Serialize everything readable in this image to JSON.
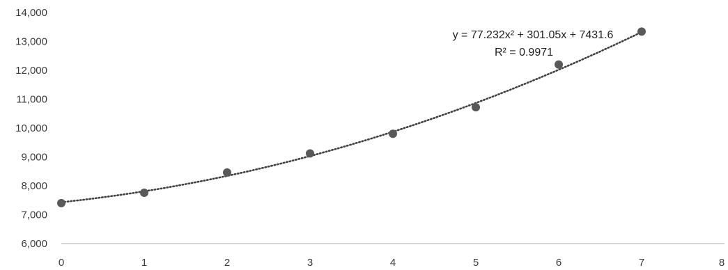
{
  "chart_data": {
    "type": "scatter",
    "x": [
      0,
      1,
      2,
      3,
      4,
      5,
      6,
      7
    ],
    "y": [
      7400,
      7760,
      8460,
      9120,
      9800,
      10720,
      12200,
      13340
    ],
    "xlim": [
      0,
      8
    ],
    "ylim": [
      6000,
      14000
    ],
    "x_ticks": [
      0,
      1,
      2,
      3,
      4,
      5,
      6,
      7,
      8
    ],
    "y_ticks": [
      6000,
      7000,
      8000,
      9000,
      10000,
      11000,
      12000,
      13000,
      14000
    ],
    "y_tick_labels": [
      "6,000",
      "7,000",
      "8,000",
      "9,000",
      "10,000",
      "11,000",
      "12,000",
      "13,000",
      "14,000"
    ],
    "grid": false,
    "trendline": {
      "type": "polynomial",
      "order": 2,
      "coefficients": [
        77.232,
        301.05,
        7431.6
      ],
      "equation": "y = 77.232x² + 301.05x + 7431.6",
      "r_squared": "R² = 0.9971"
    },
    "colors": {
      "marker": "#595959",
      "trendline": "#404040",
      "axis": "#c8c8c8"
    }
  }
}
